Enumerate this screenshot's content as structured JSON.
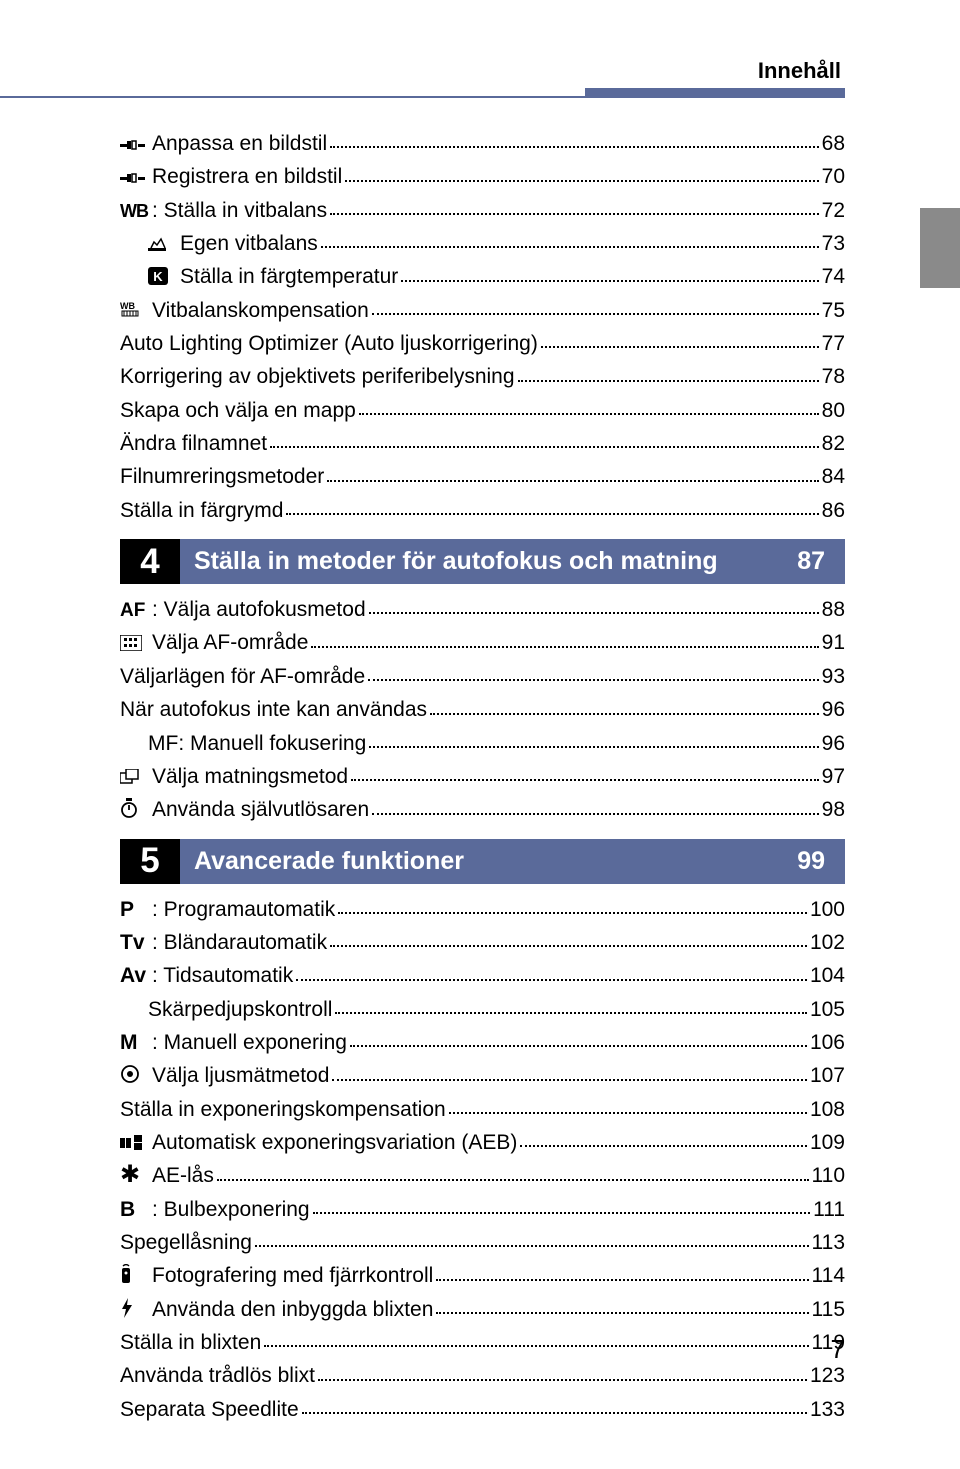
{
  "header": {
    "title": "Innehåll"
  },
  "page_number": "7",
  "colors": {
    "accent": "#5a6a9a",
    "side_tab": "#8a8a8a"
  },
  "section3_items": [
    {
      "icon": "style-icon",
      "label": "Anpassa en bildstil",
      "page": "68",
      "indent": 0
    },
    {
      "icon": "style-icon",
      "label": "Registrera en bildstil",
      "page": "70",
      "indent": 0
    },
    {
      "icon": "wb-icon",
      "label": ": Ställa in vitbalans",
      "page": "72",
      "indent": 0
    },
    {
      "icon": "custom-wb-icon",
      "label": "Egen vitbalans",
      "page": "73",
      "indent": 1
    },
    {
      "icon": "k-icon",
      "label": "Ställa in färgtemperatur",
      "page": "74",
      "indent": 1
    },
    {
      "icon": "wb-shift-icon",
      "label": "Vitbalanskompensation",
      "page": "75",
      "indent": 0
    },
    {
      "icon": "",
      "label": "Auto Lighting Optimizer (Auto ljuskorrigering)",
      "page": "77",
      "indent": 0
    },
    {
      "icon": "",
      "label": "Korrigering av objektivets periferibelysning",
      "page": "78",
      "indent": 0
    },
    {
      "icon": "",
      "label": "Skapa och välja en mapp",
      "page": "80",
      "indent": 0
    },
    {
      "icon": "",
      "label": "Ändra filnamnet",
      "page": "82",
      "indent": 0
    },
    {
      "icon": "",
      "label": "Filnumreringsmetoder",
      "page": "84",
      "indent": 0
    },
    {
      "icon": "",
      "label": "Ställa in färgrymd",
      "page": "86",
      "indent": 0
    }
  ],
  "section4": {
    "num": "4",
    "title": "Ställa in metoder för autofokus och matning",
    "page": "87"
  },
  "section4_items": [
    {
      "icon": "af-icon",
      "label": ": Välja autofokusmetod",
      "page": "88",
      "indent": 0
    },
    {
      "icon": "af-area-icon",
      "label": "Välja AF-område",
      "page": "91",
      "indent": 0
    },
    {
      "icon": "",
      "label": "Väljarlägen för AF-område",
      "page": "93",
      "indent": 0
    },
    {
      "icon": "",
      "label": "När autofokus inte kan användas",
      "page": "96",
      "indent": 0
    },
    {
      "icon": "",
      "label": "MF: Manuell fokusering",
      "page": "96",
      "indent": 1
    },
    {
      "icon": "drive-icon",
      "label": "Välja matningsmetod",
      "page": "97",
      "indent": 0
    },
    {
      "icon": "timer-icon",
      "label": "Använda självutlösaren",
      "page": "98",
      "indent": 0
    }
  ],
  "section5": {
    "num": "5",
    "title": "Avancerade funktioner",
    "page": "99"
  },
  "section5_items": [
    {
      "icon": "p-icon",
      "label": ": Programautomatik",
      "page": "100",
      "indent": 0
    },
    {
      "icon": "tv-icon",
      "label": ": Bländarautomatik",
      "page": "102",
      "indent": 0
    },
    {
      "icon": "av-icon",
      "label": ": Tidsautomatik",
      "page": "104",
      "indent": 0
    },
    {
      "icon": "",
      "label": "Skärpedjupskontroll",
      "page": "105",
      "indent": 1
    },
    {
      "icon": "m-icon",
      "label": ": Manuell exponering",
      "page": "106",
      "indent": 0
    },
    {
      "icon": "meter-icon",
      "label": "Välja ljusmätmetod",
      "page": "107",
      "indent": 0
    },
    {
      "icon": "",
      "label": "Ställa in exponeringskompensation",
      "page": "108",
      "indent": 0
    },
    {
      "icon": "aeb-icon",
      "label": "Automatisk exponeringsvariation (AEB)",
      "page": "109",
      "indent": 0
    },
    {
      "icon": "star-icon",
      "label": "AE-lås",
      "page": "110",
      "indent": 0
    },
    {
      "icon": "b-icon",
      "label": ": Bulbexponering",
      "page": "111",
      "indent": 0
    },
    {
      "icon": "",
      "label": "Spegellåsning",
      "page": "113",
      "indent": 0
    },
    {
      "icon": "remote-icon",
      "label": "Fotografering med fjärrkontroll",
      "page": "114",
      "indent": 0
    },
    {
      "icon": "flash-icon",
      "label": "Använda den inbyggda blixten",
      "page": "115",
      "indent": 0
    },
    {
      "icon": "",
      "label": "Ställa in blixten",
      "page": "119",
      "indent": 0
    },
    {
      "icon": "",
      "label": "Använda trådlös blixt",
      "page": "123",
      "indent": 0
    },
    {
      "icon": "",
      "label": "Separata Speedlite",
      "page": "133",
      "indent": 0
    }
  ]
}
